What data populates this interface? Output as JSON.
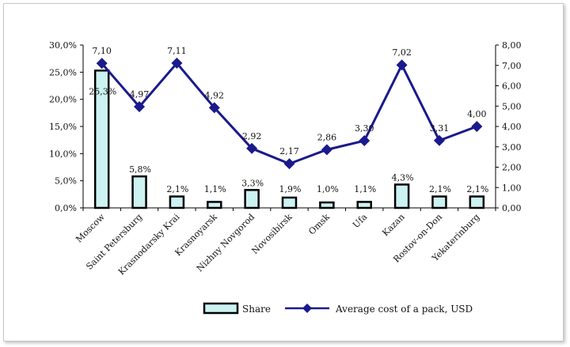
{
  "chart_data": {
    "type": "bar",
    "categories": [
      "Moscow",
      "Saint Petersburg",
      "Krasnodarsky Krai",
      "Krasnoyarsk",
      "Nizhny Novgorod",
      "Novosibirsk",
      "Omsk",
      "Ufa",
      "Kazan",
      "Rostov-on-Don",
      "Yekaterinburg"
    ],
    "series": [
      {
        "name": "Share",
        "type": "bar",
        "axis": "left",
        "values": [
          25.3,
          5.8,
          2.1,
          1.1,
          3.3,
          1.9,
          1.0,
          1.1,
          4.3,
          2.1,
          2.1
        ],
        "labels": [
          "25,3%",
          "5,8%",
          "2,1%",
          "1,1%",
          "3,3%",
          "1,9%",
          "1,0%",
          "1,1%",
          "4,3%",
          "2,1%",
          "2,1%"
        ],
        "color": "#ccf2f2"
      },
      {
        "name": "Average cost of a pack, USD",
        "type": "line",
        "axis": "right",
        "values": [
          7.1,
          4.97,
          7.11,
          4.92,
          2.92,
          2.17,
          2.86,
          3.3,
          7.02,
          3.31,
          4.0
        ],
        "labels": [
          "7,10",
          "4,97",
          "7,11",
          "4,92",
          "2,92",
          "2,17",
          "2,86",
          "3,30",
          "7,02",
          "3,31",
          "4,00"
        ],
        "color": "#1a1a8c"
      }
    ],
    "y_left": {
      "ylim": [
        0,
        30
      ],
      "ticks": [
        "0,0%",
        "5,0%",
        "10,0%",
        "15,0%",
        "20,0%",
        "25,0%",
        "30,0%"
      ]
    },
    "y_right": {
      "ylim": [
        0,
        8
      ],
      "ticks": [
        "0,00",
        "1,00",
        "2,00",
        "3,00",
        "4,00",
        "5,00",
        "6,00",
        "7,00",
        "8,00"
      ]
    },
    "legend_position": "bottom",
    "grid": false
  }
}
